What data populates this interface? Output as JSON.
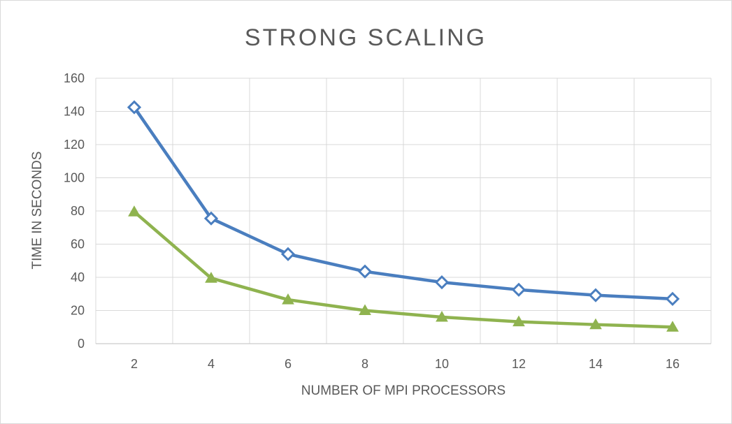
{
  "chart_data": {
    "type": "line",
    "title": "STRONG SCALING",
    "xlabel": "NUMBER OF MPI PROCESSORS",
    "ylabel": "TIME IN SECONDS",
    "categories": [
      "2",
      "4",
      "6",
      "8",
      "10",
      "12",
      "14",
      "16"
    ],
    "ylim": [
      0,
      160
    ],
    "yticks": [
      "0",
      "20",
      "40",
      "60",
      "80",
      "100",
      "120",
      "140",
      "160"
    ],
    "grid": true,
    "legend": "none",
    "series": [
      {
        "values": [
          142.5,
          75.5,
          54,
          43.5,
          37,
          32.5,
          29.2,
          27
        ],
        "color": "#4a7ebf",
        "marker": "diamond"
      },
      {
        "values": [
          79.5,
          39.5,
          26.5,
          20,
          16,
          13.2,
          11.5,
          10
        ],
        "color": "#8fb34f",
        "marker": "triangle"
      }
    ]
  }
}
